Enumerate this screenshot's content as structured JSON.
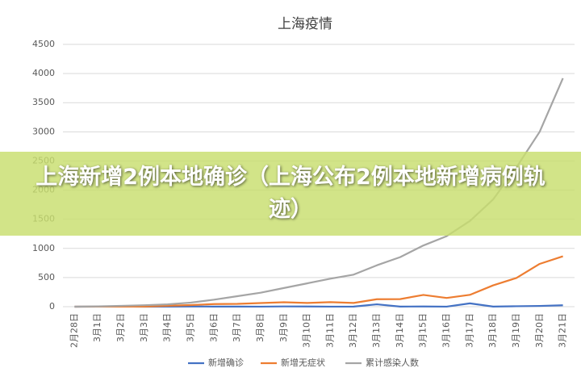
{
  "chart_data": {
    "type": "line",
    "title": "上海疫情",
    "categories": [
      "2月28日",
      "3月1日",
      "3月2日",
      "3月3日",
      "3月4日",
      "3月5日",
      "3月6日",
      "3月7日",
      "3月8日",
      "3月9日",
      "3月10日",
      "3月11日",
      "3月12日",
      "3月13日",
      "3月14日",
      "3月15日",
      "3月16日",
      "3月17日",
      "3月18日",
      "3月19日",
      "3月20日",
      "3月21日"
    ],
    "series": [
      {
        "name": "新增确诊",
        "color": "#4472c4",
        "values": [
          0,
          1,
          3,
          0,
          2,
          3,
          2,
          2,
          1,
          4,
          3,
          1,
          2,
          41,
          2,
          3,
          1,
          57,
          2,
          8,
          13,
          24
        ]
      },
      {
        "name": "新增无症状",
        "color": "#ed7d31",
        "values": [
          0,
          1,
          2,
          2,
          16,
          28,
          45,
          48,
          62,
          76,
          64,
          78,
          64,
          128,
          130,
          202,
          150,
          203,
          366,
          492,
          734,
          865
        ]
      },
      {
        "name": "累计感染人数",
        "color": "#a5a5a5",
        "values": [
          0,
          5,
          15,
          25,
          40,
          70,
          120,
          180,
          240,
          320,
          400,
          480,
          550,
          710,
          850,
          1050,
          1210,
          1470,
          1840,
          2390,
          3000,
          3920
        ]
      }
    ],
    "ylim": [
      0,
      4500
    ],
    "yticks": [
      0,
      500,
      1000,
      1500,
      2000,
      2500,
      3000,
      3500,
      4000,
      4500
    ],
    "grid": true,
    "legend": "bottom"
  },
  "banner": {
    "text": "上海新增2例本地确诊（上海公布2例本地新增病例轨迹）"
  }
}
